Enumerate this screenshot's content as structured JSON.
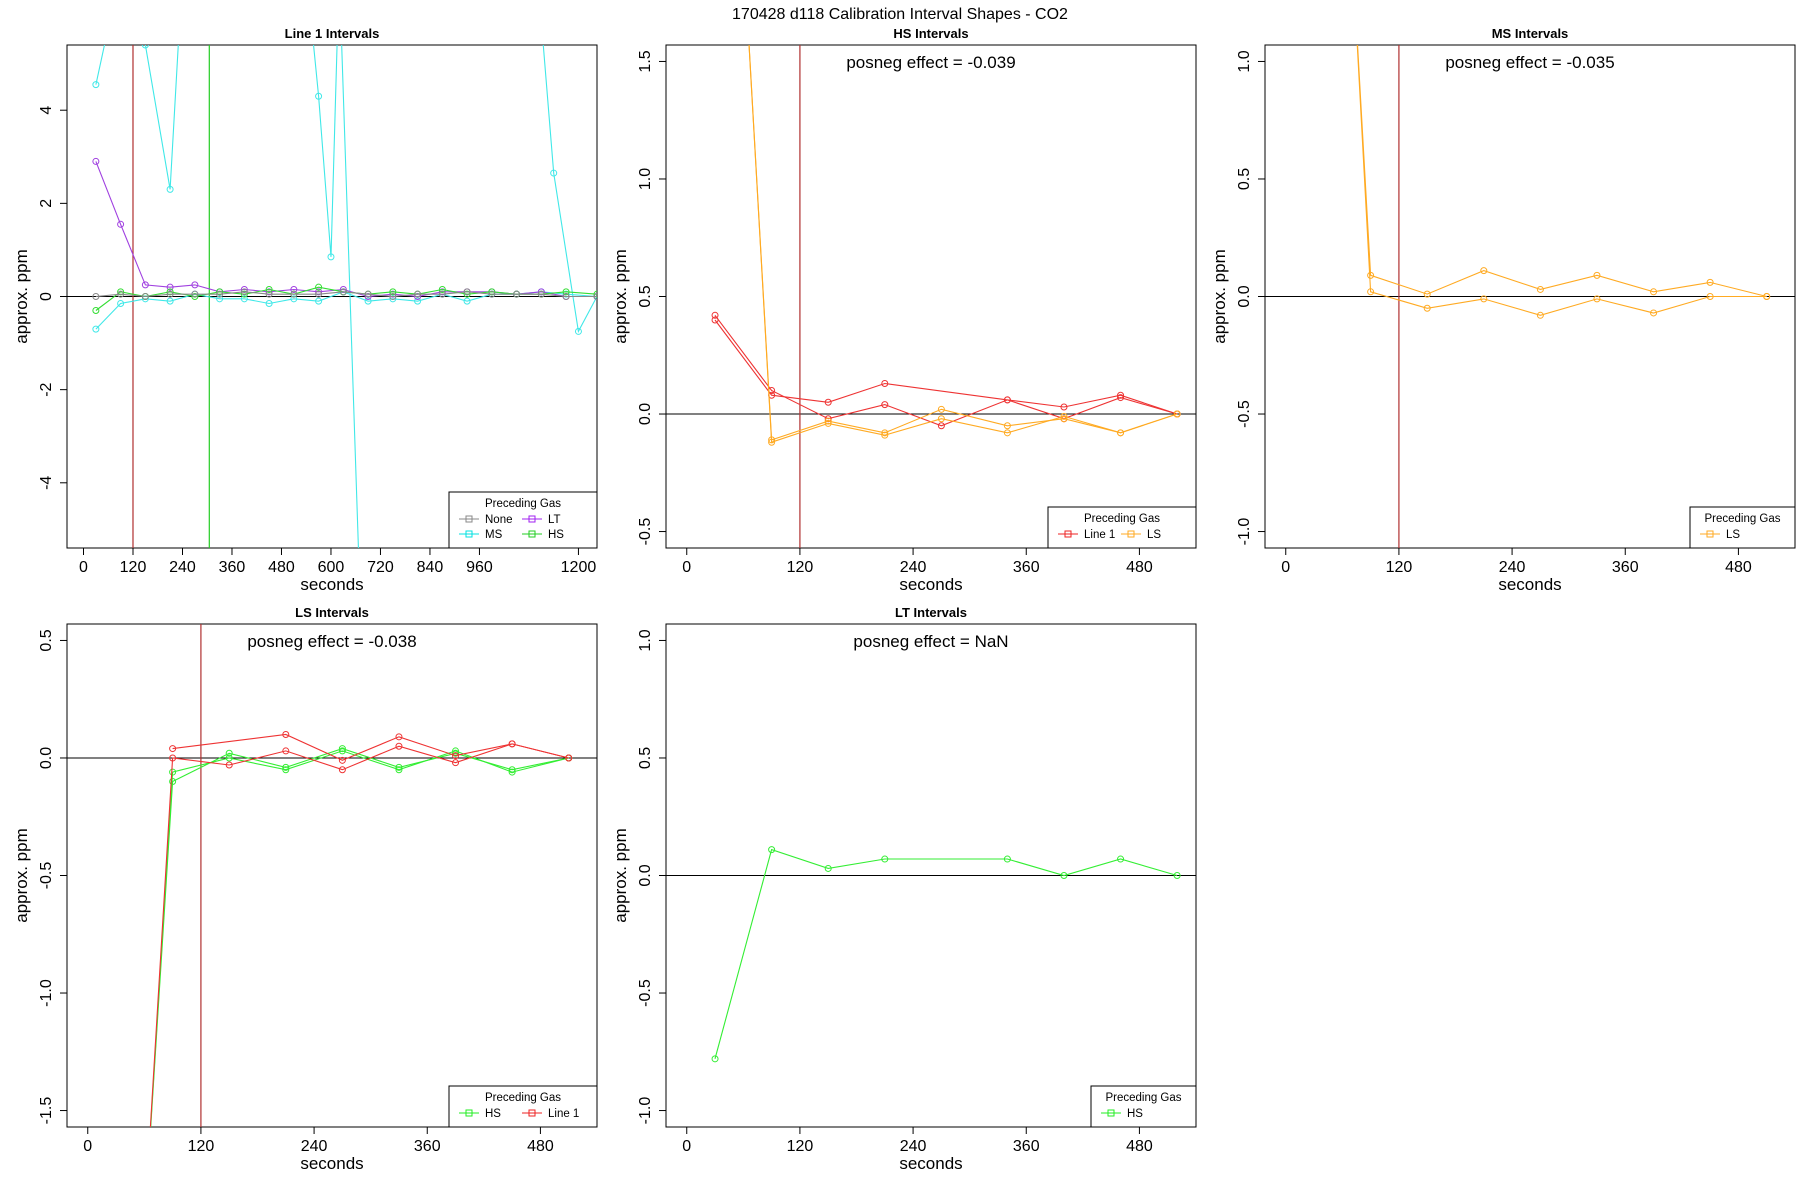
{
  "figure": {
    "title": "170428  d118   Calibration Interval Shapes - CO2"
  },
  "chart_data": [
    {
      "type": "line",
      "title": "Line 1 Intervals",
      "xlabel": "seconds",
      "ylabel": "approx. ppm",
      "xlim": [
        -40,
        1245
      ],
      "ylim": [
        -5.4,
        5.4
      ],
      "xticks": [
        0,
        120,
        240,
        360,
        480,
        600,
        720,
        840,
        960,
        1200
      ],
      "yticks": [
        -4,
        -2,
        0,
        2,
        4
      ],
      "vlines": [
        {
          "x": 120,
          "color": "#b03030"
        },
        {
          "x": 305,
          "color": "#22cc22"
        }
      ],
      "annotation": "",
      "legend": {
        "title": "Preceding Gas",
        "position": "bottom-right",
        "columns": 2,
        "entries": [
          {
            "label": "None",
            "color": "#888888"
          },
          {
            "label": "LT",
            "color": "#a020f0"
          },
          {
            "label": "MS",
            "color": "#00e0e0"
          },
          {
            "label": "HS",
            "color": "#22cc22"
          }
        ]
      },
      "series": [
        {
          "name": "MS",
          "color": "#40e8e8",
          "x": [
            30,
            90,
            150,
            210,
            240
          ],
          "y": [
            4.55,
            7,
            5.4,
            2.3,
            7
          ]
        },
        {
          "name": "MS",
          "color": "#40e8e8",
          "x": [
            540,
            570,
            600,
            620,
            680
          ],
          "y": [
            7,
            4.3,
            0.85,
            7,
            -9
          ]
        },
        {
          "name": "MS",
          "color": "#40e8e8",
          "x": [
            1100,
            1140,
            1200,
            1245
          ],
          "y": [
            7,
            2.65,
            -0.75,
            0
          ]
        },
        {
          "name": "MS",
          "color": "#40e8e8",
          "x": [
            30,
            90,
            150,
            210,
            270,
            330,
            390,
            450,
            510,
            570,
            630,
            690,
            750,
            810,
            870,
            930,
            990,
            1050,
            1110,
            1170,
            1245
          ],
          "y": [
            -0.7,
            -0.15,
            -0.05,
            -0.1,
            0.05,
            -0.05,
            -0.05,
            -0.15,
            -0.05,
            -0.1,
            0.1,
            -0.1,
            -0.05,
            -0.1,
            0.05,
            -0.1,
            0.05,
            0.05,
            0.1,
            0.05,
            0
          ]
        },
        {
          "name": "LT",
          "color": "#a040e0",
          "x": [
            30,
            90,
            150,
            210,
            270,
            330,
            390,
            450,
            510,
            570,
            630,
            690,
            750,
            810,
            870,
            930,
            990,
            1050,
            1110,
            1170,
            1245
          ],
          "y": [
            2.9,
            1.55,
            0.25,
            0.2,
            0.25,
            0.1,
            0.15,
            0.1,
            0.15,
            0.1,
            0.15,
            0,
            0.05,
            0,
            0.1,
            0.1,
            0.1,
            0.05,
            0.1,
            0,
            0
          ]
        },
        {
          "name": "HS",
          "color": "#33dd33",
          "x": [
            30,
            90,
            150,
            210,
            270,
            330,
            390,
            450,
            510,
            570,
            630,
            690,
            750,
            810,
            870,
            930,
            990,
            1050,
            1110,
            1170,
            1245
          ],
          "y": [
            -0.3,
            0.1,
            0,
            0.1,
            0,
            0.1,
            0.05,
            0.15,
            0.05,
            0.2,
            0.1,
            0.05,
            0.1,
            0.05,
            0.15,
            0.05,
            0.1,
            0.05,
            0.05,
            0.1,
            0.05
          ]
        },
        {
          "name": "None",
          "color": "#888888",
          "x": [
            30,
            90,
            150,
            210,
            270,
            330,
            390,
            450,
            510,
            570,
            630,
            690,
            750,
            810,
            870,
            930,
            990,
            1050,
            1110,
            1170,
            1245
          ],
          "y": [
            0,
            0.05,
            0,
            0.05,
            0.05,
            0.05,
            0.1,
            0.05,
            0.05,
            0.05,
            0.1,
            0.05,
            0,
            0.05,
            0.05,
            0.1,
            0.05,
            0.05,
            0.05,
            0,
            0
          ]
        }
      ]
    },
    {
      "type": "line",
      "title": "HS Intervals",
      "xlabel": "seconds",
      "ylabel": "approx. ppm",
      "xlim": [
        -22,
        540
      ],
      "ylim": [
        -0.57,
        1.57
      ],
      "xticks": [
        0,
        120,
        240,
        360,
        480
      ],
      "yticks": [
        -0.5,
        0.0,
        0.5,
        1.0,
        1.5
      ],
      "vlines": [
        {
          "x": 120,
          "color": "#b03030"
        }
      ],
      "annotation": "posneg effect = -0.039",
      "legend": {
        "title": "Preceding Gas",
        "position": "bottom-right",
        "columns": 2,
        "entries": [
          {
            "label": "Line 1",
            "color": "#ee2222"
          },
          {
            "label": "LS",
            "color": "#ffaa22"
          }
        ]
      },
      "series": [
        {
          "name": "Line 1",
          "color": "#ee3333",
          "x": [
            30,
            90,
            150,
            210,
            270,
            340,
            400,
            460,
            520
          ],
          "y": [
            0.42,
            0.1,
            -0.02,
            0.04,
            -0.05,
            0.06,
            0.03,
            0.08,
            0
          ]
        },
        {
          "name": "Line 1",
          "color": "#ee3333",
          "x": [
            30,
            90,
            150,
            210,
            340,
            400,
            460,
            520
          ],
          "y": [
            0.4,
            0.08,
            0.05,
            0.13,
            0.06,
            -0.02,
            0.07,
            0
          ]
        },
        {
          "name": "LS",
          "color": "#ffaa22",
          "x": [
            60,
            90,
            150,
            210,
            270,
            340,
            400,
            460,
            520
          ],
          "y": [
            2,
            -0.11,
            -0.03,
            -0.08,
            0.02,
            -0.05,
            -0.02,
            -0.08,
            0
          ]
        },
        {
          "name": "LS",
          "color": "#ffaa22",
          "x": [
            60,
            90,
            150,
            210,
            270,
            340,
            400,
            460,
            520
          ],
          "y": [
            2,
            -0.12,
            -0.04,
            -0.09,
            -0.02,
            -0.08,
            -0.01,
            -0.08,
            0
          ]
        }
      ]
    },
    {
      "type": "line",
      "title": "MS Intervals",
      "xlabel": "seconds",
      "ylabel": "approx. ppm",
      "xlim": [
        -22,
        540
      ],
      "ylim": [
        -1.07,
        1.07
      ],
      "xticks": [
        0,
        120,
        240,
        360,
        480
      ],
      "yticks": [
        -1.0,
        -0.5,
        0.0,
        0.5,
        1.0
      ],
      "vlines": [
        {
          "x": 120,
          "color": "#b03030"
        }
      ],
      "annotation": "posneg effect = -0.035",
      "legend": {
        "title": "Preceding Gas",
        "position": "bottom-right",
        "columns": 1,
        "entries": [
          {
            "label": "LS",
            "color": "#ffaa22"
          }
        ]
      },
      "series": [
        {
          "name": "LS",
          "color": "#ffaa22",
          "x": [
            70,
            90,
            150,
            210,
            270,
            330,
            390,
            450,
            510
          ],
          "y": [
            1.5,
            0.09,
            0.01,
            0.11,
            0.03,
            0.09,
            0.02,
            0.06,
            0
          ]
        },
        {
          "name": "LS",
          "color": "#ffaa22",
          "x": [
            70,
            90,
            150,
            210,
            270,
            330,
            390,
            450,
            510
          ],
          "y": [
            1.5,
            0.02,
            -0.05,
            -0.01,
            -0.08,
            -0.01,
            -0.07,
            0,
            0
          ]
        }
      ]
    },
    {
      "type": "line",
      "title": "LS Intervals",
      "xlabel": "seconds",
      "ylabel": "approx. ppm",
      "xlim": [
        -22,
        540
      ],
      "ylim": [
        -1.57,
        0.57
      ],
      "xticks": [
        0,
        120,
        240,
        360,
        480
      ],
      "yticks": [
        -1.5,
        -1.0,
        -0.5,
        0.0,
        0.5
      ],
      "vlines": [
        {
          "x": 120,
          "color": "#b03030"
        }
      ],
      "annotation": "posneg effect = -0.038",
      "legend": {
        "title": "Preceding Gas",
        "position": "bottom-right",
        "columns": 2,
        "entries": [
          {
            "label": "HS",
            "color": "#22ee22"
          },
          {
            "label": "Line 1",
            "color": "#ee2222"
          }
        ]
      },
      "series": [
        {
          "name": "HS",
          "color": "#33ee33",
          "x": [
            60,
            90,
            150,
            210,
            270,
            330,
            390,
            450,
            510
          ],
          "y": [
            -2,
            -0.1,
            0.02,
            -0.04,
            0.04,
            -0.04,
            0.02,
            -0.05,
            0
          ]
        },
        {
          "name": "HS",
          "color": "#33ee33",
          "x": [
            60,
            90,
            150,
            210,
            270,
            330,
            390,
            450,
            510
          ],
          "y": [
            -2,
            -0.06,
            0,
            -0.05,
            0.03,
            -0.05,
            0.03,
            -0.06,
            0
          ]
        },
        {
          "name": "Line 1",
          "color": "#ee3333",
          "x": [
            60,
            90,
            150,
            210,
            270,
            330,
            390,
            450,
            510
          ],
          "y": [
            -2,
            0,
            -0.03,
            0.03,
            -0.05,
            0.05,
            -0.02,
            0.06,
            0
          ]
        },
        {
          "name": "Line 1",
          "color": "#ee3333",
          "x": [
            90,
            210,
            270,
            330,
            390,
            450,
            510
          ],
          "y": [
            0.04,
            0.1,
            -0.01,
            0.09,
            0.01,
            0.06,
            0
          ]
        }
      ]
    },
    {
      "type": "line",
      "title": "LT Intervals",
      "xlabel": "seconds",
      "ylabel": "approx. ppm",
      "xlim": [
        -22,
        540
      ],
      "ylim": [
        -1.07,
        1.07
      ],
      "xticks": [
        0,
        120,
        240,
        360,
        480
      ],
      "yticks": [
        -1.0,
        -0.5,
        0.0,
        0.5,
        1.0
      ],
      "vlines": [],
      "annotation": "posneg effect = NaN",
      "legend": {
        "title": "Preceding Gas",
        "position": "bottom-right",
        "columns": 1,
        "entries": [
          {
            "label": "HS",
            "color": "#22ee22"
          }
        ]
      },
      "series": [
        {
          "name": "HS",
          "color": "#33ee33",
          "x": [
            30,
            90,
            150,
            210,
            340,
            400,
            460,
            520
          ],
          "y": [
            -0.78,
            0.11,
            0.03,
            0.07,
            0.07,
            0,
            0.07,
            0
          ]
        }
      ]
    }
  ]
}
